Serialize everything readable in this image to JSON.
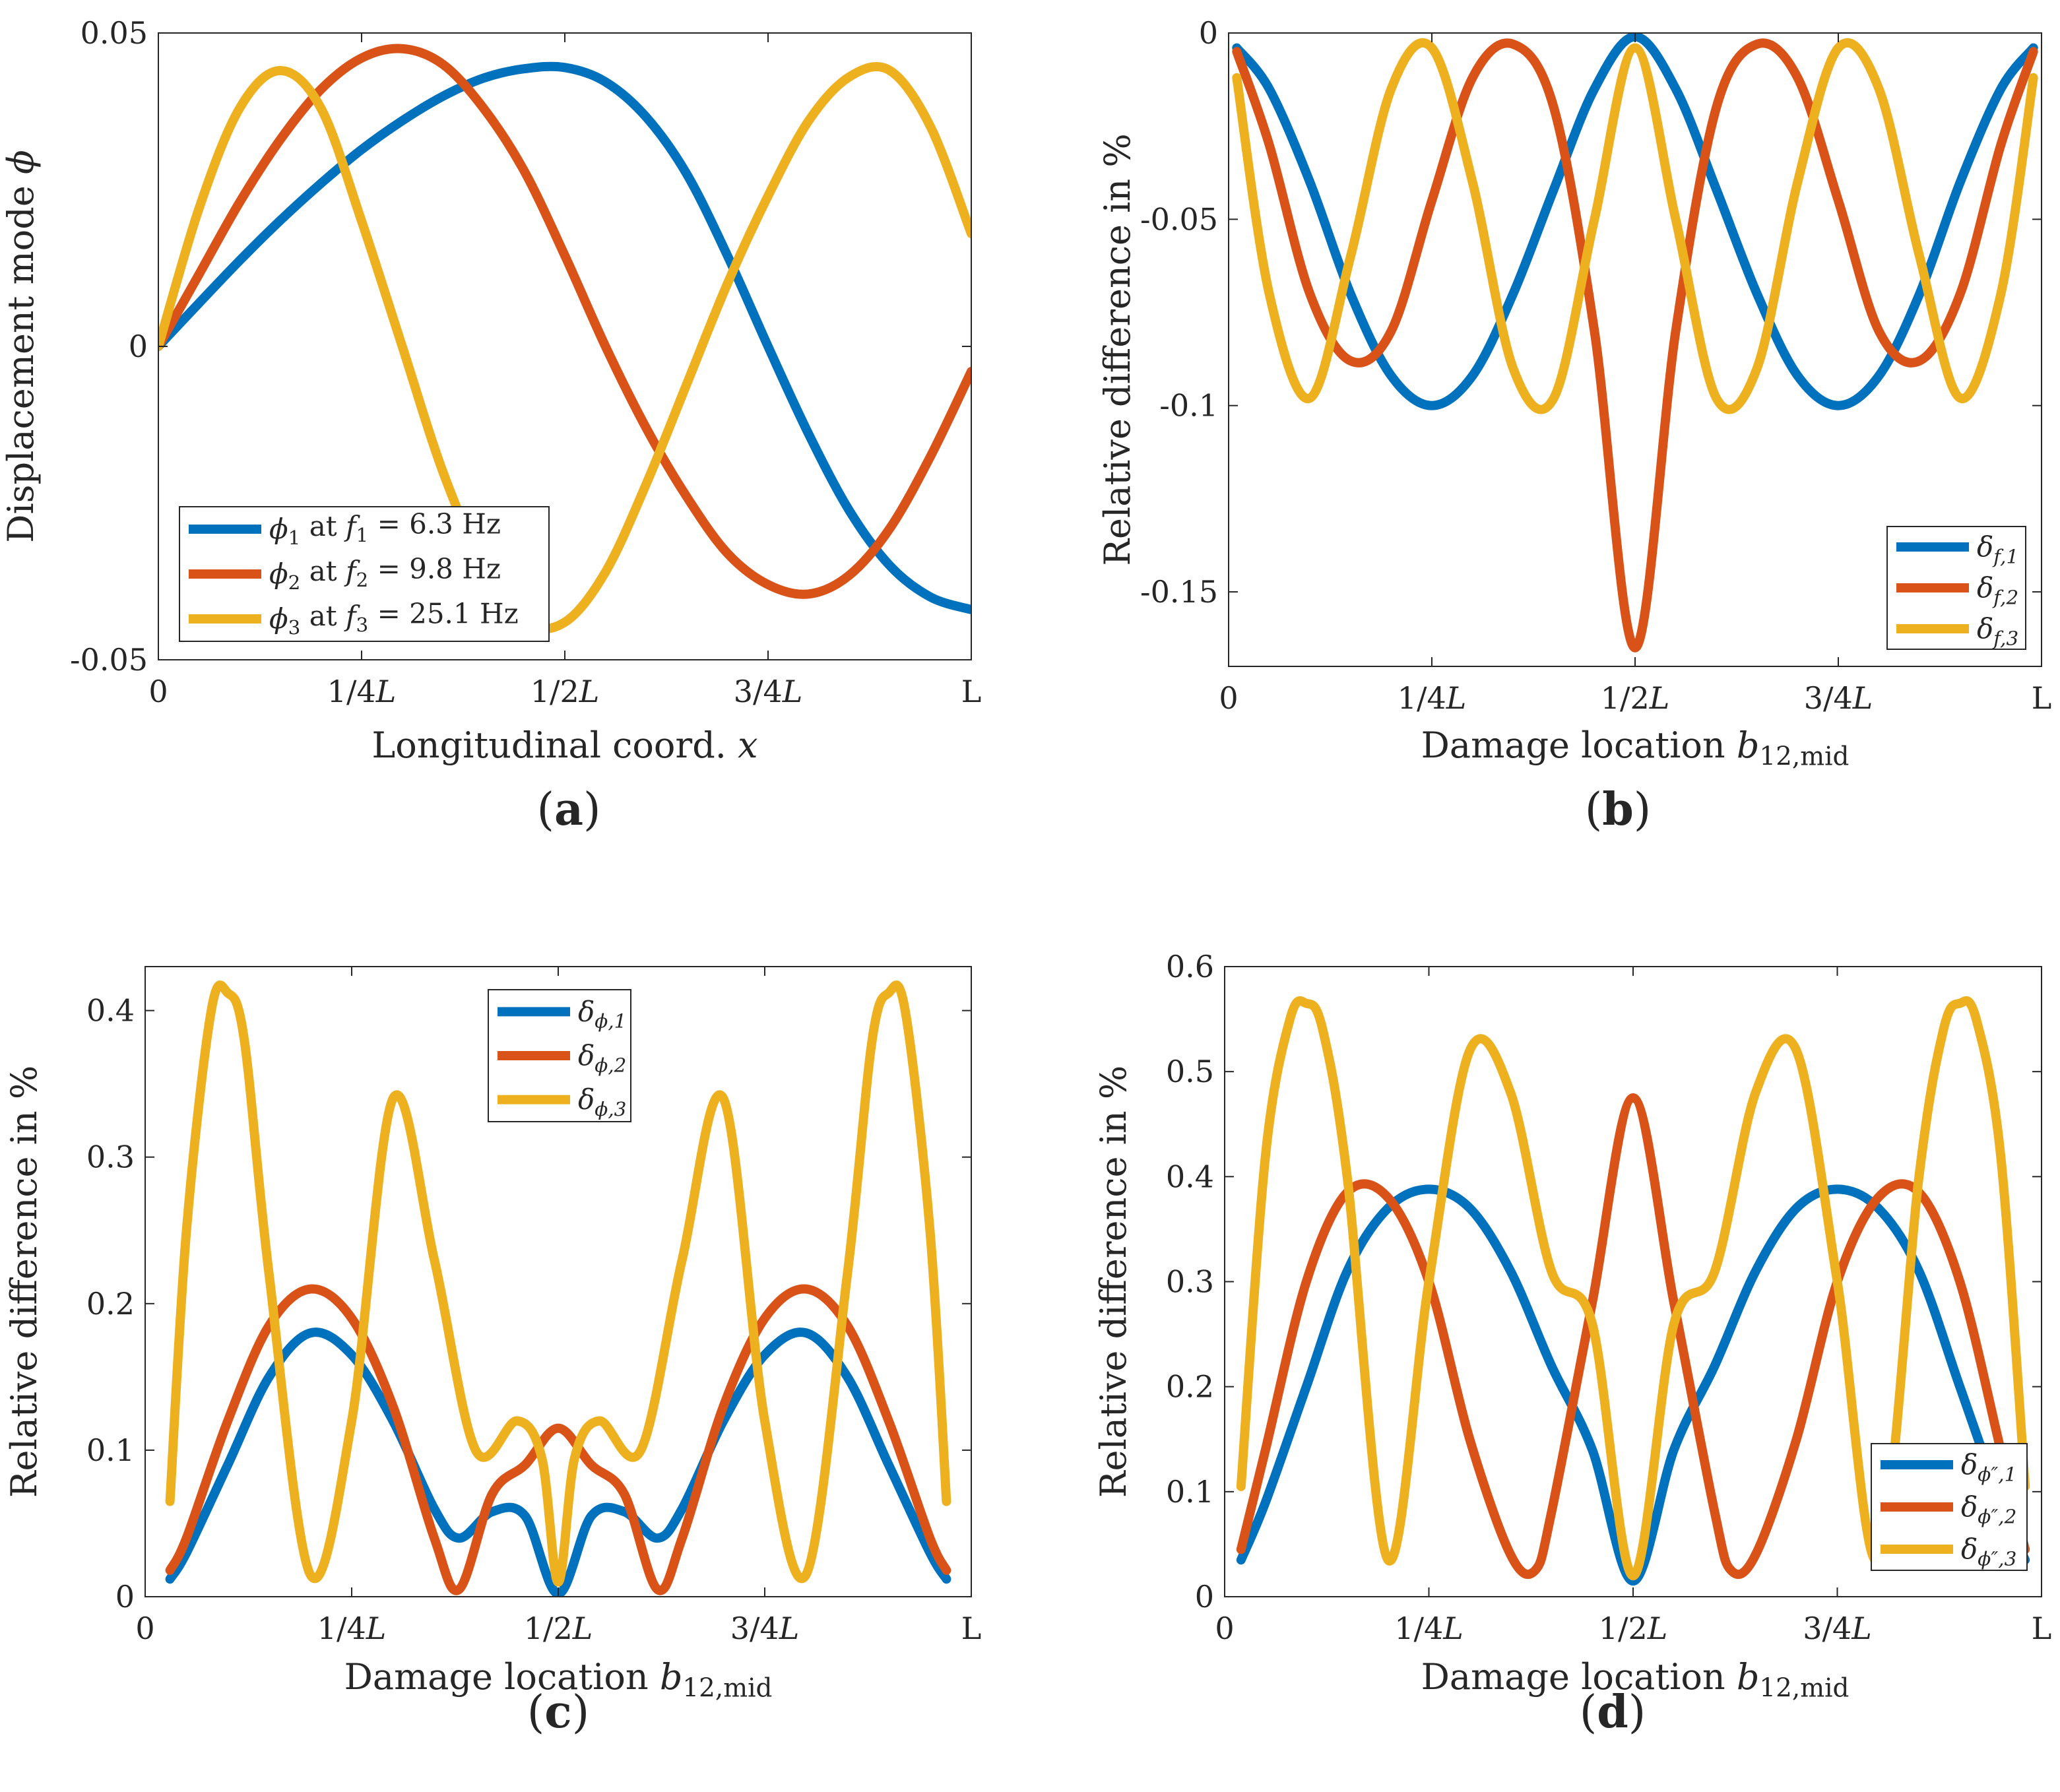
{
  "colors": {
    "blue": "#0072BD",
    "orange": "#D95319",
    "yellow": "#EDB120",
    "axis": "#262626"
  },
  "panels": [
    {
      "label": "(a)"
    },
    {
      "label": "(b)"
    },
    {
      "label": "(c)"
    },
    {
      "label": "(d)"
    }
  ],
  "chart_data": [
    {
      "type": "line",
      "xlabel": "Longitudinal coord. x",
      "ylabel": "Displacement mode ϕ",
      "xlim": [
        0,
        1
      ],
      "ylim": [
        -0.05,
        0.05
      ],
      "xticks": [
        0,
        0.25,
        0.5,
        0.75,
        1
      ],
      "xticklabels": [
        "0",
        "1/4L",
        "1/2L",
        "3/4L",
        "L"
      ],
      "yticks": [
        -0.05,
        0,
        0.05
      ],
      "yticklabels": [
        "-0.05",
        "0",
        "0.05"
      ],
      "legend_position": "bottom-left",
      "series": [
        {
          "name": "ϕ1 at f1 = 6.3 Hz",
          "color": "blue",
          "x": [
            0,
            0.05,
            0.1,
            0.15,
            0.2,
            0.25,
            0.3,
            0.35,
            0.4,
            0.45,
            0.5,
            0.55,
            0.6,
            0.65,
            0.7,
            0.75,
            0.8,
            0.85,
            0.9,
            0.95,
            1
          ],
          "y": [
            0,
            0.0069,
            0.0137,
            0.0201,
            0.026,
            0.0314,
            0.036,
            0.0399,
            0.0428,
            0.0443,
            0.0445,
            0.0422,
            0.0366,
            0.0275,
            0.0145,
            0,
            -0.014,
            -0.0262,
            -0.035,
            -0.04,
            -0.042
          ]
        },
        {
          "name": "ϕ2 at f2 = 9.8 Hz",
          "color": "orange",
          "x": [
            0,
            0.05,
            0.1,
            0.15,
            0.2,
            0.25,
            0.3,
            0.35,
            0.4,
            0.45,
            0.5,
            0.55,
            0.6,
            0.65,
            0.7,
            0.75,
            0.8,
            0.85,
            0.9,
            0.95,
            1
          ],
          "y": [
            0,
            0.0115,
            0.023,
            0.033,
            0.041,
            0.046,
            0.0475,
            0.045,
            0.038,
            0.028,
            0.0145,
            0,
            -0.013,
            -0.024,
            -0.033,
            -0.038,
            -0.0395,
            -0.0365,
            -0.029,
            -0.0175,
            -0.004
          ]
        },
        {
          "name": "ϕ3 at f3 = 25.1 Hz",
          "color": "yellow",
          "x": [
            0,
            0.05,
            0.1,
            0.15,
            0.2,
            0.25,
            0.3,
            0.35,
            0.4,
            0.45,
            0.5,
            0.55,
            0.6,
            0.65,
            0.7,
            0.75,
            0.8,
            0.85,
            0.9,
            0.95,
            1
          ],
          "y": [
            0,
            0.022,
            0.038,
            0.044,
            0.038,
            0.02,
            0,
            -0.02,
            -0.035,
            -0.044,
            -0.044,
            -0.036,
            -0.022,
            -0.006,
            0.01,
            0.024,
            0.036,
            0.043,
            0.044,
            0.035,
            0.018
          ]
        }
      ]
    },
    {
      "type": "line",
      "xlabel": "Damage location b12,mid",
      "ylabel": "Relative difference in %",
      "xlim": [
        0,
        1
      ],
      "ylim": [
        -0.17,
        0
      ],
      "xticks": [
        0,
        0.25,
        0.5,
        0.75,
        1
      ],
      "xticklabels": [
        "0",
        "1/4L",
        "1/2L",
        "3/4L",
        "L"
      ],
      "yticks": [
        -0.15,
        -0.1,
        -0.05,
        0
      ],
      "yticklabels": [
        "-0.15",
        "-0.1",
        "-0.05",
        "0"
      ],
      "legend_position": "bottom-right",
      "series": [
        {
          "name": "δf,1",
          "color": "blue",
          "x": [
            0.01,
            0.05,
            0.1,
            0.15,
            0.2,
            0.25,
            0.3,
            0.35,
            0.4,
            0.45,
            0.5,
            0.55,
            0.6,
            0.65,
            0.7,
            0.75,
            0.8,
            0.85,
            0.9,
            0.95,
            0.99
          ],
          "y": [
            -0.004,
            -0.015,
            -0.04,
            -0.07,
            -0.092,
            -0.1,
            -0.092,
            -0.07,
            -0.042,
            -0.015,
            -0.001,
            -0.015,
            -0.042,
            -0.07,
            -0.092,
            -0.1,
            -0.092,
            -0.07,
            -0.04,
            -0.015,
            -0.004
          ]
        },
        {
          "name": "δf,2",
          "color": "orange",
          "x": [
            0.01,
            0.05,
            0.1,
            0.15,
            0.2,
            0.25,
            0.3,
            0.35,
            0.4,
            0.45,
            0.5,
            0.55,
            0.6,
            0.65,
            0.7,
            0.75,
            0.8,
            0.85,
            0.9,
            0.95,
            0.99
          ],
          "y": [
            -0.005,
            -0.03,
            -0.07,
            -0.088,
            -0.08,
            -0.045,
            -0.012,
            -0.003,
            -0.02,
            -0.08,
            -0.165,
            -0.08,
            -0.02,
            -0.003,
            -0.012,
            -0.045,
            -0.08,
            -0.088,
            -0.07,
            -0.03,
            -0.005
          ]
        },
        {
          "name": "δf,3",
          "color": "yellow",
          "x": [
            0.01,
            0.05,
            0.1,
            0.15,
            0.2,
            0.25,
            0.3,
            0.35,
            0.4,
            0.45,
            0.5,
            0.55,
            0.6,
            0.65,
            0.7,
            0.75,
            0.8,
            0.85,
            0.9,
            0.95,
            0.99
          ],
          "y": [
            -0.012,
            -0.07,
            -0.098,
            -0.06,
            -0.015,
            -0.004,
            -0.04,
            -0.09,
            -0.098,
            -0.05,
            -0.004,
            -0.05,
            -0.098,
            -0.09,
            -0.04,
            -0.004,
            -0.015,
            -0.06,
            -0.098,
            -0.07,
            -0.012
          ]
        }
      ]
    },
    {
      "type": "line",
      "xlabel": "Damage location b12,mid",
      "ylabel": "Relative difference in %",
      "xlim": [
        0,
        1
      ],
      "ylim": [
        0,
        0.43
      ],
      "xticks": [
        0,
        0.25,
        0.5,
        0.75,
        1
      ],
      "xticklabels": [
        "0",
        "1/4L",
        "1/2L",
        "3/4L",
        "L"
      ],
      "yticks": [
        0,
        0.1,
        0.2,
        0.3,
        0.4
      ],
      "yticklabels": [
        "0",
        "0.1",
        "0.2",
        "0.3",
        "0.4"
      ],
      "legend_position": "top",
      "series": [
        {
          "name": "δϕ,1",
          "color": "blue",
          "x": [
            0.03,
            0.05,
            0.1,
            0.15,
            0.2,
            0.25,
            0.3,
            0.35,
            0.38,
            0.42,
            0.46,
            0.5,
            0.54,
            0.58,
            0.62,
            0.65,
            0.7,
            0.75,
            0.8,
            0.85,
            0.9,
            0.95,
            0.97
          ],
          "y": [
            0.012,
            0.03,
            0.09,
            0.15,
            0.18,
            0.165,
            0.12,
            0.06,
            0.04,
            0.058,
            0.055,
            0.002,
            0.055,
            0.058,
            0.04,
            0.06,
            0.12,
            0.165,
            0.18,
            0.15,
            0.09,
            0.03,
            0.012
          ]
        },
        {
          "name": "δϕ,2",
          "color": "orange",
          "x": [
            0.03,
            0.05,
            0.1,
            0.15,
            0.2,
            0.25,
            0.3,
            0.35,
            0.38,
            0.42,
            0.46,
            0.5,
            0.54,
            0.58,
            0.62,
            0.65,
            0.7,
            0.75,
            0.8,
            0.85,
            0.9,
            0.95,
            0.97
          ],
          "y": [
            0.018,
            0.04,
            0.12,
            0.185,
            0.21,
            0.19,
            0.13,
            0.04,
            0.005,
            0.07,
            0.09,
            0.115,
            0.09,
            0.07,
            0.005,
            0.04,
            0.13,
            0.19,
            0.21,
            0.185,
            0.12,
            0.04,
            0.018
          ]
        },
        {
          "name": "δϕ,3",
          "color": "yellow",
          "x": [
            0.03,
            0.05,
            0.08,
            0.1,
            0.12,
            0.15,
            0.2,
            0.25,
            0.3,
            0.35,
            0.4,
            0.45,
            0.48,
            0.5,
            0.52,
            0.55,
            0.6,
            0.65,
            0.7,
            0.75,
            0.8,
            0.85,
            0.88,
            0.9,
            0.92,
            0.95,
            0.97
          ],
          "y": [
            0.065,
            0.25,
            0.4,
            0.412,
            0.38,
            0.22,
            0.015,
            0.12,
            0.34,
            0.23,
            0.1,
            0.12,
            0.095,
            0.01,
            0.095,
            0.12,
            0.1,
            0.23,
            0.34,
            0.12,
            0.015,
            0.22,
            0.38,
            0.412,
            0.4,
            0.25,
            0.065
          ]
        }
      ]
    },
    {
      "type": "line",
      "xlabel": "Damage location b12,mid",
      "ylabel": "Relative difference in %",
      "xlim": [
        0,
        1
      ],
      "ylim": [
        0,
        0.6
      ],
      "xticks": [
        0,
        0.25,
        0.5,
        0.75,
        1
      ],
      "xticklabels": [
        "0",
        "1/4L",
        "1/2L",
        "3/4L",
        "L"
      ],
      "yticks": [
        0,
        0.1,
        0.2,
        0.3,
        0.4,
        0.5,
        0.6
      ],
      "yticklabels": [
        "0",
        "0.1",
        "0.2",
        "0.3",
        "0.4",
        "0.5",
        "0.6"
      ],
      "legend_position": "bottom-right",
      "series": [
        {
          "name": "δϕ″,1",
          "color": "blue",
          "x": [
            0.02,
            0.05,
            0.1,
            0.15,
            0.2,
            0.25,
            0.3,
            0.35,
            0.4,
            0.45,
            0.5,
            0.55,
            0.6,
            0.65,
            0.7,
            0.75,
            0.8,
            0.85,
            0.9,
            0.95,
            0.98
          ],
          "y": [
            0.035,
            0.09,
            0.2,
            0.31,
            0.37,
            0.388,
            0.37,
            0.31,
            0.22,
            0.14,
            0.015,
            0.14,
            0.22,
            0.31,
            0.37,
            0.388,
            0.37,
            0.31,
            0.2,
            0.09,
            0.035
          ]
        },
        {
          "name": "δϕ″,2",
          "color": "orange",
          "x": [
            0.02,
            0.05,
            0.1,
            0.15,
            0.2,
            0.25,
            0.3,
            0.35,
            0.38,
            0.4,
            0.45,
            0.5,
            0.55,
            0.6,
            0.62,
            0.65,
            0.7,
            0.75,
            0.8,
            0.85,
            0.9,
            0.95,
            0.98
          ],
          "y": [
            0.045,
            0.14,
            0.3,
            0.385,
            0.38,
            0.3,
            0.15,
            0.04,
            0.025,
            0.08,
            0.28,
            0.475,
            0.28,
            0.08,
            0.025,
            0.04,
            0.15,
            0.3,
            0.38,
            0.385,
            0.3,
            0.14,
            0.045
          ]
        },
        {
          "name": "δϕ″,3",
          "color": "yellow",
          "x": [
            0.02,
            0.05,
            0.08,
            0.1,
            0.12,
            0.15,
            0.2,
            0.25,
            0.3,
            0.35,
            0.4,
            0.45,
            0.5,
            0.55,
            0.6,
            0.65,
            0.7,
            0.75,
            0.8,
            0.85,
            0.88,
            0.9,
            0.92,
            0.95,
            0.98
          ],
          "y": [
            0.105,
            0.42,
            0.55,
            0.565,
            0.54,
            0.4,
            0.035,
            0.3,
            0.52,
            0.48,
            0.31,
            0.26,
            0.02,
            0.26,
            0.31,
            0.48,
            0.52,
            0.3,
            0.035,
            0.4,
            0.54,
            0.565,
            0.55,
            0.42,
            0.105
          ]
        }
      ]
    }
  ]
}
